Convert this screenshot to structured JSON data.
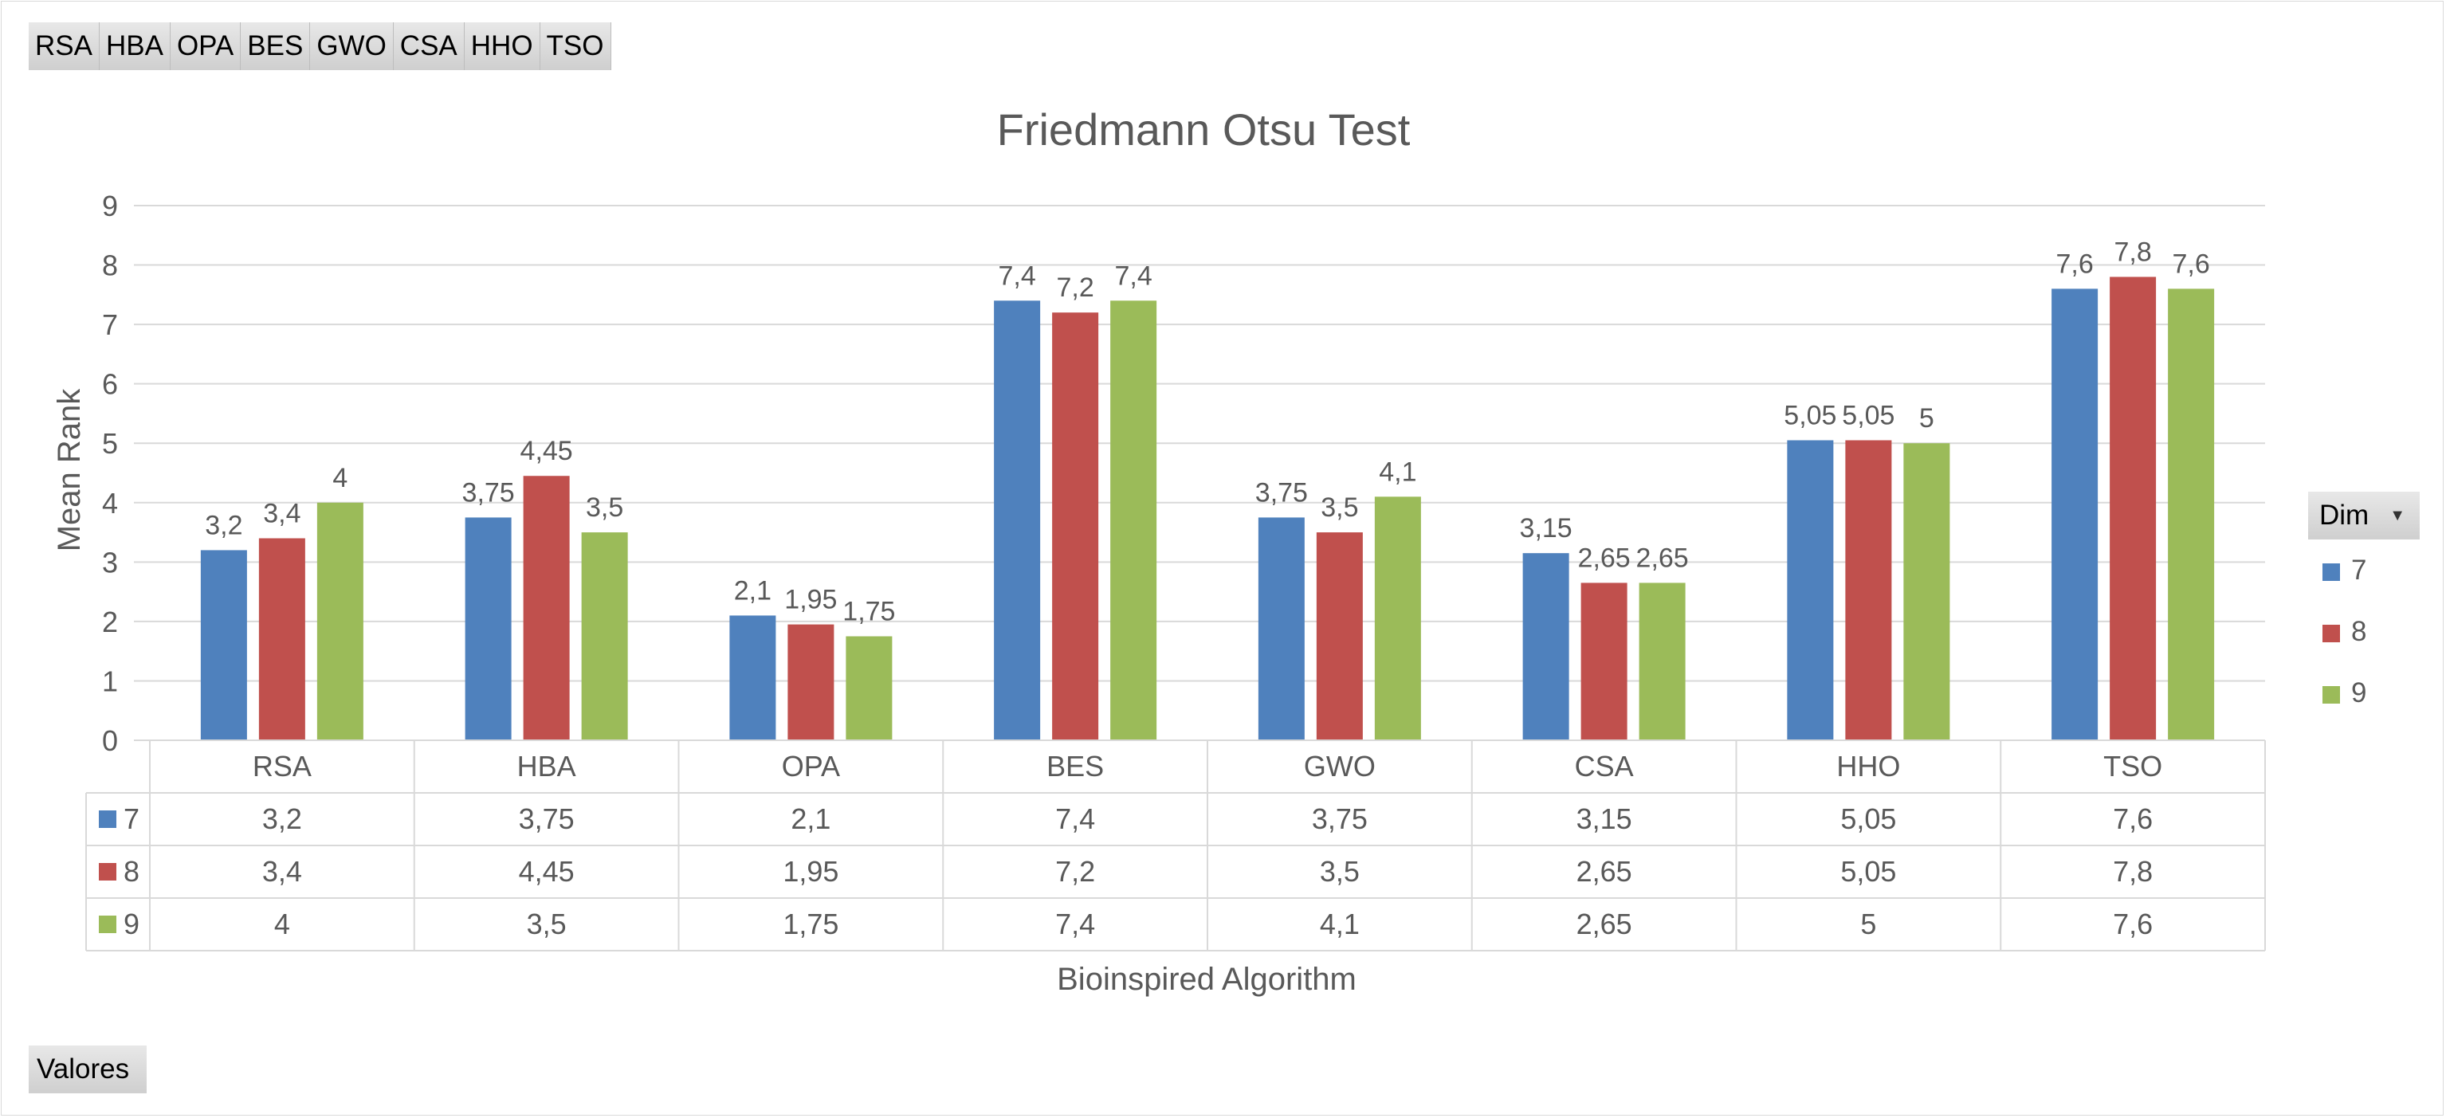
{
  "pivot_fields": [
    "RSA",
    "HBA",
    "OPA",
    "BES",
    "GWO",
    "CSA",
    "HHO",
    "TSO"
  ],
  "values_button": "Valores",
  "legend": {
    "title": "Dim",
    "dropdown_icon": "dropdown-arrow-icon"
  },
  "chart_data": {
    "type": "bar",
    "title": "Friedmann Otsu Test",
    "xlabel": "Bioinspired Algorithm",
    "ylabel": "Mean Rank",
    "ylim": [
      0,
      9
    ],
    "yticks": [
      "0",
      "1",
      "2",
      "3",
      "4",
      "5",
      "6",
      "7",
      "8",
      "9"
    ],
    "categories": [
      "RSA",
      "HBA",
      "OPA",
      "BES",
      "GWO",
      "CSA",
      "HHO",
      "TSO"
    ],
    "grid": true,
    "legend_position": "right",
    "data_table": true,
    "series": [
      {
        "name": "7",
        "color": "#4F81BD",
        "values": [
          3.2,
          3.75,
          2.1,
          7.4,
          3.75,
          3.15,
          5.05,
          7.6
        ],
        "labels": [
          "3,2",
          "3,75",
          "2,1",
          "7,4",
          "3,75",
          "3,15",
          "5,05",
          "7,6"
        ]
      },
      {
        "name": "8",
        "color": "#C0504D",
        "values": [
          3.4,
          4.45,
          1.95,
          7.2,
          3.5,
          2.65,
          5.05,
          7.8
        ],
        "labels": [
          "3,4",
          "4,45",
          "1,95",
          "7,2",
          "3,5",
          "2,65",
          "5,05",
          "7,8"
        ]
      },
      {
        "name": "9",
        "color": "#9BBB59",
        "values": [
          4,
          3.5,
          1.75,
          7.4,
          4.1,
          2.65,
          5,
          7.6
        ],
        "labels": [
          "4",
          "3,5",
          "1,75",
          "7,4",
          "4,1",
          "2,65",
          "5",
          "7,6"
        ]
      }
    ]
  }
}
